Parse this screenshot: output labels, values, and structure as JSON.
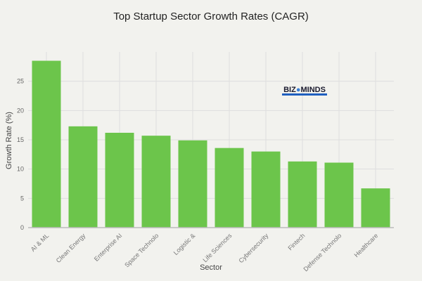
{
  "chart_data": {
    "type": "bar",
    "title": "Top Startup Sector Growth Rates (CAGR)",
    "xlabel": "Sector",
    "ylabel": "Growth Rate (%)",
    "categories": [
      "AI & ML",
      "Clean Energy",
      "Enterprise AI",
      "Space Technolo",
      "Logistic &",
      "Life Sciences",
      "Cybersecurity",
      "Fintech",
      "Defense Technolo",
      "Healthcare"
    ],
    "values": [
      28.5,
      17.3,
      16.2,
      15.7,
      14.9,
      13.6,
      13.0,
      11.3,
      11.1,
      6.7
    ],
    "ylim": [
      0,
      30
    ],
    "yticks": [
      0,
      5,
      10,
      15,
      20,
      25
    ],
    "grid": true,
    "bar_color": "#6cc54b"
  },
  "logo": {
    "text": "BIZ MINDS",
    "colors": {
      "text": "#1a1a2e",
      "band": "#1f5fbf"
    }
  }
}
